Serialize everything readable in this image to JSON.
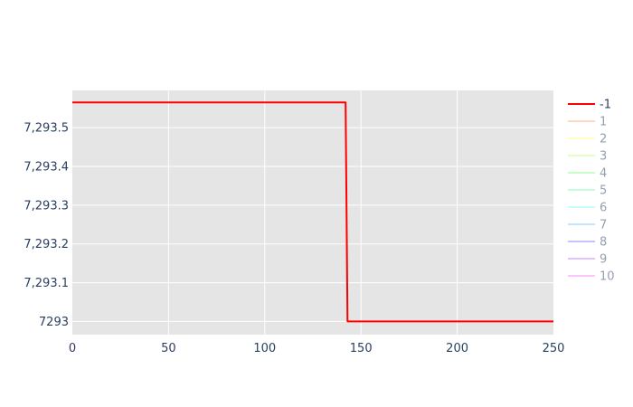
{
  "chart_data": {
    "type": "line",
    "title": "",
    "xlabel": "",
    "ylabel": "",
    "xlim": [
      0,
      250
    ],
    "ylim": [
      7292.966,
      7293.596
    ],
    "x_ticks": [
      0,
      50,
      100,
      150,
      200,
      250
    ],
    "x_tick_labels": [
      "0",
      "50",
      "100",
      "150",
      "200",
      "250"
    ],
    "y_ticks": [
      7293,
      7293.1,
      7293.2,
      7293.3,
      7293.4,
      7293.5
    ],
    "y_tick_labels": [
      "7293",
      "7,293.1",
      "7,293.2",
      "7,293.3",
      "7,293.4",
      "7,293.5"
    ],
    "grid": true,
    "plot_background": "#e5e5e5",
    "legend_position": "right",
    "series": [
      {
        "name": "-1",
        "color": "#ff0000",
        "visible": true,
        "x": [
          0,
          142,
          143,
          250
        ],
        "y": [
          7293.565,
          7293.565,
          7293.0,
          7293.0
        ]
      },
      {
        "name": "1",
        "color": "#ffb28a",
        "visible": false,
        "x": [],
        "y": []
      },
      {
        "name": "2",
        "color": "#ffff88",
        "visible": false,
        "x": [],
        "y": []
      },
      {
        "name": "3",
        "color": "#cfff88",
        "visible": false,
        "x": [],
        "y": []
      },
      {
        "name": "4",
        "color": "#8cff8c",
        "visible": false,
        "x": [],
        "y": []
      },
      {
        "name": "5",
        "color": "#88ffbf",
        "visible": false,
        "x": [],
        "y": []
      },
      {
        "name": "6",
        "color": "#88ffff",
        "visible": false,
        "x": [],
        "y": []
      },
      {
        "name": "7",
        "color": "#88c8ff",
        "visible": false,
        "x": [],
        "y": []
      },
      {
        "name": "8",
        "color": "#8888ff",
        "visible": false,
        "x": [],
        "y": []
      },
      {
        "name": "9",
        "color": "#c488ff",
        "visible": false,
        "x": [],
        "y": []
      },
      {
        "name": "10",
        "color": "#ff88ff",
        "visible": false,
        "x": [],
        "y": []
      }
    ]
  }
}
